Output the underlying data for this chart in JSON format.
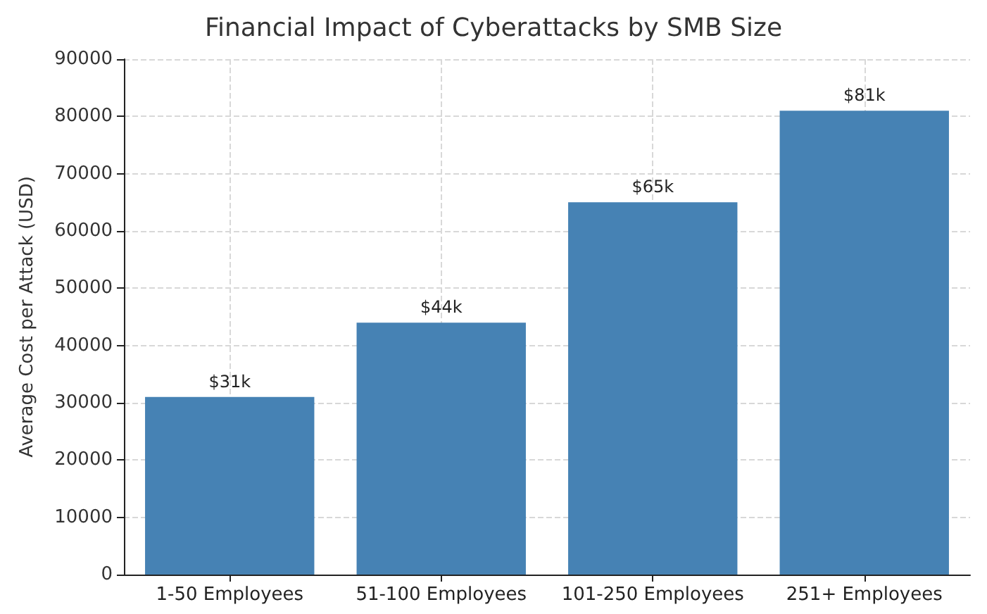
{
  "chart_data": {
    "type": "bar",
    "title": "Financial Impact of Cyberattacks by SMB Size",
    "ylabel": "Average Cost per Attack (USD)",
    "categories": [
      "1-50 Employees",
      "51-100 Employees",
      "101-250 Employees",
      "251+ Employees"
    ],
    "values": [
      31000,
      44000,
      65000,
      81000
    ],
    "color": "#4682b4",
    "value_labels": [
      "$31k",
      "$44k",
      "$65k",
      "$81k"
    ],
    "ylim": [
      0,
      90000
    ],
    "yticks": [
      0,
      10000,
      20000,
      30000,
      40000,
      50000,
      60000,
      70000,
      80000,
      90000
    ],
    "grid": true
  }
}
